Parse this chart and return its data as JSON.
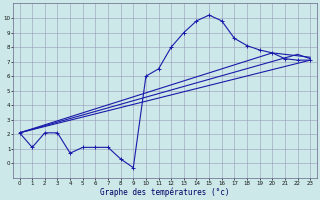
{
  "xlabel": "Graphe des températures (°c)",
  "xlim": [
    -0.5,
    23.5
  ],
  "ylim": [
    -1,
    11
  ],
  "xticks": [
    0,
    1,
    2,
    3,
    4,
    5,
    6,
    7,
    8,
    9,
    10,
    11,
    12,
    13,
    14,
    15,
    16,
    17,
    18,
    19,
    20,
    21,
    22,
    23
  ],
  "yticks": [
    0,
    1,
    2,
    3,
    4,
    5,
    6,
    7,
    8,
    9,
    10
  ],
  "bg_color": "#cce8e8",
  "grid_color": "#9999bb",
  "line_color": "#1a1aaa",
  "curve1_x": [
    0,
    1,
    2,
    3,
    4,
    5,
    6,
    7,
    8,
    9,
    10,
    11,
    12,
    13,
    14,
    15,
    16,
    17,
    18,
    19,
    20,
    21,
    22,
    23
  ],
  "curve1_y": [
    2.1,
    1.1,
    2.1,
    2.1,
    0.7,
    1.1,
    1.1,
    1.1,
    0.3,
    -0.3,
    6.0,
    6.5,
    8.0,
    9.0,
    9.8,
    10.2,
    9.8,
    8.6,
    8.1,
    7.8,
    7.6,
    7.2,
    7.1,
    7.1
  ],
  "line2_x": [
    0,
    23
  ],
  "line2_y": [
    2.1,
    7.1
  ],
  "line3_x": [
    0,
    20,
    23
  ],
  "line3_y": [
    2.1,
    7.6,
    7.3
  ],
  "line4_x": [
    0,
    22,
    23
  ],
  "line4_y": [
    2.1,
    7.5,
    7.2
  ]
}
